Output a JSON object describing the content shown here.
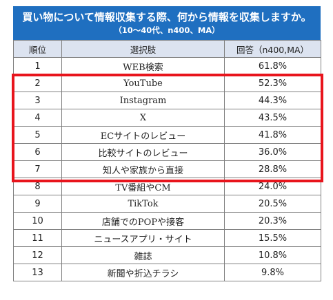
{
  "header": {
    "title": "買い物について情報収集する際、何から情報を収集しますか。",
    "subtitle": "（10～40代、n400、MA）"
  },
  "table": {
    "columns": [
      "順位",
      "選択肢",
      "回答（n400,MA）"
    ],
    "rows": [
      {
        "rank": "1",
        "option": "WEB検索",
        "value": "61.8%"
      },
      {
        "rank": "2",
        "option": "YouTube",
        "value": "52.3%"
      },
      {
        "rank": "3",
        "option": "Instagram",
        "value": "44.3%"
      },
      {
        "rank": "4",
        "option": "X",
        "value": "43.5%"
      },
      {
        "rank": "5",
        "option": "ECサイトのレビュー",
        "value": "41.8%"
      },
      {
        "rank": "6",
        "option": "比較サイトのレビュー",
        "value": "36.0%"
      },
      {
        "rank": "7",
        "option": "知人や家族から直接",
        "value": "28.8%"
      },
      {
        "rank": "8",
        "option": "TV番組やCM",
        "value": "24.0%"
      },
      {
        "rank": "9",
        "option": "TikTok",
        "value": "20.5%"
      },
      {
        "rank": "10",
        "option": "店舗でのPOPや接客",
        "value": "20.3%"
      },
      {
        "rank": "11",
        "option": "ニュースアプリ・サイト",
        "value": "15.5%"
      },
      {
        "rank": "12",
        "option": "雑誌",
        "value": "10.8%"
      },
      {
        "rank": "13",
        "option": "新聞や折込チラシ",
        "value": "9.8%"
      }
    ]
  },
  "colors": {
    "header_background": "#1f6fc0",
    "column_header_background": "#dce3f0",
    "highlight_border": "#e8141c"
  }
}
